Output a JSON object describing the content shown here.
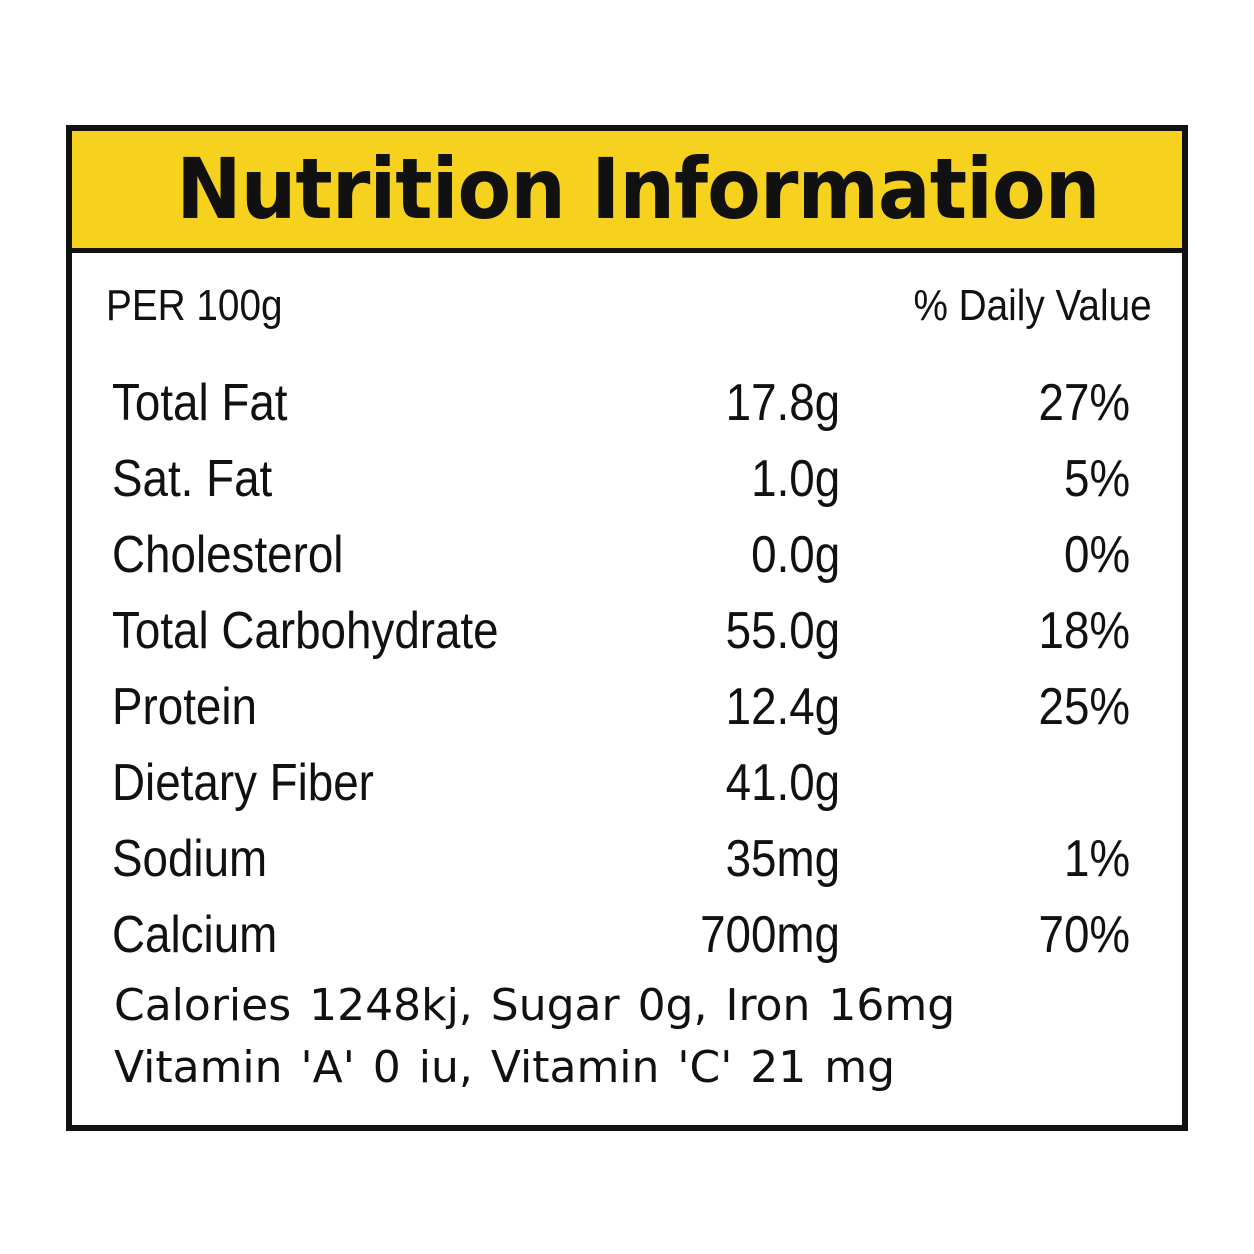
{
  "label": {
    "title": "Nutrition Information",
    "per_label": "PER 100g",
    "daily_value_label": "% Daily Value",
    "nutrients": [
      {
        "name": "Total Fat",
        "amount": "17.8g",
        "daily_value": "27%"
      },
      {
        "name": "Sat. Fat",
        "amount": "1.0g",
        "daily_value": "5%"
      },
      {
        "name": "Cholesterol",
        "amount": "0.0g",
        "daily_value": "0%"
      },
      {
        "name": "Total Carbohydrate",
        "amount": "55.0g",
        "daily_value": "18%"
      },
      {
        "name": "Protein",
        "amount": "12.4g",
        "daily_value": "25%"
      },
      {
        "name": "Dietary Fiber",
        "amount": "41.0g",
        "daily_value": ""
      },
      {
        "name": "Sodium",
        "amount": "35mg",
        "daily_value": "1%"
      },
      {
        "name": "Calcium",
        "amount": "700mg",
        "daily_value": "70%"
      }
    ],
    "footer_lines": [
      "Calories 1248kj, Sugar 0g, Iron 16mg",
      "Vitamin 'A' 0 iu, Vitamin 'C' 21 mg"
    ]
  },
  "colors": {
    "title_background": "#f6d21e",
    "border": "#111111",
    "text": "#111111",
    "panel_background": "#ffffff"
  }
}
